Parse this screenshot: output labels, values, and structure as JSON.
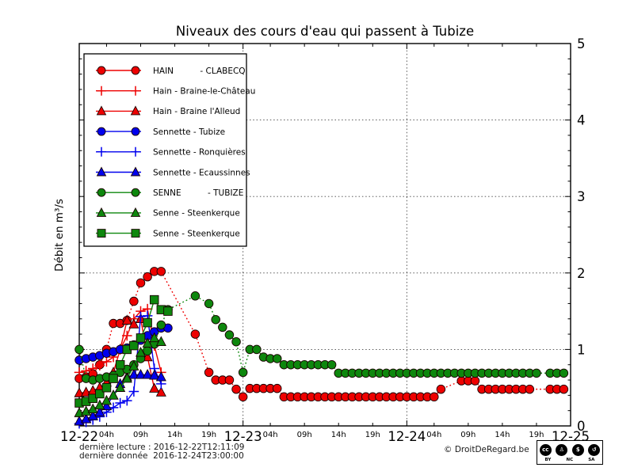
{
  "footer": {
    "last_reading": "dernière lecture : 2016-12-22T12:11:09",
    "last_data": "dernière donnée  2016-12-24T23:00:00",
    "copyright": "© DroitDeRegard.be"
  },
  "cc_badge": {
    "circle_glyphs": [
      "cc",
      "♙",
      "$",
      "↺"
    ],
    "labels": [
      "BY",
      "NC",
      "SA"
    ]
  },
  "chart_data": {
    "type": "line",
    "title": "Niveaux des cours d'eau qui passent à Tubize",
    "ylabel": "Débit en m³/s",
    "ylim": [
      0,
      5
    ],
    "yticks": [
      0,
      1,
      2,
      3,
      4,
      5
    ],
    "y_minor_step": 0.2,
    "xlim_hours": [
      0,
      72
    ],
    "x_day_ticks": [
      {
        "label": "12-22",
        "hour": 0
      },
      {
        "label": "12-23",
        "hour": 24
      },
      {
        "label": "12-24",
        "hour": 48
      },
      {
        "label": "12-25",
        "hour": 72
      }
    ],
    "x_hour_label_offsets": [
      4,
      9,
      14,
      19
    ],
    "hour_label_suffix": "h",
    "grid": {
      "horizontal_at": [
        1,
        2,
        3,
        4
      ],
      "vertical_at_hours": [
        24,
        48
      ],
      "style": "dotted"
    },
    "legend_position": "upper-left",
    "series": [
      {
        "name": "HAIN          - CLABECQ",
        "color": "#ee0000",
        "marker": "circle",
        "line": "dotted",
        "points": [
          [
            0,
            0.62
          ],
          [
            1,
            0.64
          ],
          [
            2,
            0.68
          ],
          [
            3,
            0.8
          ],
          [
            4,
            1.0
          ],
          [
            5,
            1.34
          ],
          [
            6,
            1.34
          ],
          [
            7,
            1.38
          ],
          [
            8,
            1.63
          ],
          [
            9,
            1.87
          ],
          [
            10,
            1.95
          ],
          [
            11,
            2.02
          ],
          [
            12,
            2.02
          ],
          [
            17,
            1.2
          ],
          [
            19,
            0.7
          ],
          [
            20,
            0.6
          ],
          [
            21,
            0.6
          ],
          [
            22,
            0.6
          ],
          [
            23,
            0.48
          ],
          [
            24,
            0.38
          ],
          [
            25,
            0.49
          ],
          [
            26,
            0.49
          ],
          [
            27,
            0.49
          ],
          [
            28,
            0.49
          ],
          [
            29,
            0.49
          ],
          [
            30,
            0.38
          ],
          [
            31,
            0.38
          ],
          [
            32,
            0.38
          ],
          [
            33,
            0.38
          ],
          [
            34,
            0.38
          ],
          [
            35,
            0.38
          ],
          [
            36,
            0.38
          ],
          [
            37,
            0.38
          ],
          [
            38,
            0.38
          ],
          [
            39,
            0.38
          ],
          [
            40,
            0.38
          ],
          [
            41,
            0.38
          ],
          [
            42,
            0.38
          ],
          [
            43,
            0.38
          ],
          [
            44,
            0.38
          ],
          [
            45,
            0.38
          ],
          [
            46,
            0.38
          ],
          [
            47,
            0.38
          ],
          [
            48,
            0.38
          ],
          [
            49,
            0.38
          ],
          [
            50,
            0.38
          ],
          [
            51,
            0.38
          ],
          [
            52,
            0.38
          ],
          [
            53,
            0.48
          ],
          [
            56,
            0.59
          ],
          [
            57,
            0.59
          ],
          [
            58,
            0.59
          ],
          [
            59,
            0.48
          ],
          [
            60,
            0.48
          ],
          [
            61,
            0.48
          ],
          [
            62,
            0.48
          ],
          [
            63,
            0.48
          ],
          [
            64,
            0.48
          ],
          [
            65,
            0.48
          ],
          [
            66,
            0.48
          ],
          [
            69,
            0.48
          ],
          [
            70,
            0.48
          ],
          [
            71,
            0.48
          ]
        ]
      },
      {
        "name": "Hain - Braine-le-Château",
        "color": "#ee0000",
        "marker": "plus",
        "line": "solid",
        "points": [
          [
            0,
            0.7
          ],
          [
            1,
            0.72
          ],
          [
            2,
            0.75
          ],
          [
            3,
            0.79
          ],
          [
            4,
            0.84
          ],
          [
            5,
            0.9
          ],
          [
            6,
            1.0
          ],
          [
            7,
            1.18
          ],
          [
            8,
            1.4
          ],
          [
            9,
            1.5
          ],
          [
            10,
            1.53
          ],
          [
            11,
            1.05
          ],
          [
            12,
            0.7
          ]
        ]
      },
      {
        "name": "Hain - Braine l'Alleud",
        "color": "#ee0000",
        "marker": "triangle",
        "line": "solid",
        "points": [
          [
            0,
            0.43
          ],
          [
            1,
            0.44
          ],
          [
            2,
            0.46
          ],
          [
            3,
            0.5
          ],
          [
            4,
            0.57
          ],
          [
            5,
            0.7
          ],
          [
            6,
            1.0
          ],
          [
            7,
            1.38
          ],
          [
            8,
            1.33
          ],
          [
            9,
            1.4
          ],
          [
            10,
            0.9
          ],
          [
            11,
            0.49
          ],
          [
            12,
            0.44
          ]
        ]
      },
      {
        "name": "Sennette - Tubize",
        "color": "#0000ee",
        "marker": "circle",
        "line": "solid",
        "points": [
          [
            0,
            0.86
          ],
          [
            1,
            0.88
          ],
          [
            2,
            0.9
          ],
          [
            3,
            0.92
          ],
          [
            4,
            0.95
          ],
          [
            5,
            0.97
          ],
          [
            6,
            1.0
          ],
          [
            7,
            1.02
          ],
          [
            8,
            1.06
          ],
          [
            9,
            1.12
          ],
          [
            10,
            1.18
          ],
          [
            11,
            1.23
          ],
          [
            12,
            1.28
          ],
          [
            13,
            1.28
          ]
        ]
      },
      {
        "name": "Sennette - Ronquières",
        "color": "#0000ee",
        "marker": "plus",
        "line": "solid",
        "points": [
          [
            0,
            0.03
          ],
          [
            1,
            0.05
          ],
          [
            2,
            0.08
          ],
          [
            3,
            0.12
          ],
          [
            4,
            0.18
          ],
          [
            5,
            0.24
          ],
          [
            6,
            0.3
          ],
          [
            7,
            0.33
          ],
          [
            8,
            0.45
          ],
          [
            9,
            1.43
          ],
          [
            10,
            1.44
          ],
          [
            11,
            0.75
          ],
          [
            12,
            0.55
          ]
        ]
      },
      {
        "name": "Sennette - Ecaussinnes",
        "color": "#0000ee",
        "marker": "triangle",
        "line": "solid",
        "points": [
          [
            0,
            0.06
          ],
          [
            1,
            0.09
          ],
          [
            2,
            0.13
          ],
          [
            3,
            0.18
          ],
          [
            4,
            0.26
          ],
          [
            5,
            0.4
          ],
          [
            6,
            0.55
          ],
          [
            7,
            0.64
          ],
          [
            8,
            0.67
          ],
          [
            9,
            0.67
          ],
          [
            10,
            0.67
          ],
          [
            11,
            0.66
          ],
          [
            12,
            0.64
          ]
        ]
      },
      {
        "name": "SENNE          - TUBIZE",
        "color": "#0d870d",
        "marker": "circle",
        "line": "dotted",
        "points": [
          [
            0,
            1.0
          ],
          [
            1,
            0.62
          ],
          [
            2,
            0.6
          ],
          [
            3,
            0.62
          ],
          [
            4,
            0.64
          ],
          [
            5,
            0.66
          ],
          [
            6,
            0.7
          ],
          [
            7,
            0.74
          ],
          [
            8,
            0.8
          ],
          [
            9,
            0.88
          ],
          [
            10,
            0.98
          ],
          [
            11,
            1.07
          ],
          [
            12,
            1.32
          ],
          [
            13,
            1.52
          ],
          [
            17,
            1.7
          ],
          [
            19,
            1.6
          ],
          [
            20,
            1.39
          ],
          [
            21,
            1.29
          ],
          [
            22,
            1.19
          ],
          [
            23,
            1.1
          ],
          [
            24,
            0.7
          ],
          [
            25,
            1.0
          ],
          [
            26,
            1.0
          ],
          [
            27,
            0.9
          ],
          [
            28,
            0.88
          ],
          [
            29,
            0.88
          ],
          [
            30,
            0.8
          ],
          [
            31,
            0.8
          ],
          [
            32,
            0.8
          ],
          [
            33,
            0.8
          ],
          [
            34,
            0.8
          ],
          [
            35,
            0.8
          ],
          [
            36,
            0.8
          ],
          [
            37,
            0.8
          ],
          [
            38,
            0.69
          ],
          [
            39,
            0.69
          ],
          [
            40,
            0.69
          ],
          [
            41,
            0.69
          ],
          [
            42,
            0.69
          ],
          [
            43,
            0.69
          ],
          [
            44,
            0.69
          ],
          [
            45,
            0.69
          ],
          [
            46,
            0.69
          ],
          [
            47,
            0.69
          ],
          [
            48,
            0.69
          ],
          [
            49,
            0.69
          ],
          [
            50,
            0.69
          ],
          [
            51,
            0.69
          ],
          [
            52,
            0.69
          ],
          [
            53,
            0.69
          ],
          [
            54,
            0.69
          ],
          [
            55,
            0.69
          ],
          [
            56,
            0.69
          ],
          [
            57,
            0.69
          ],
          [
            58,
            0.69
          ],
          [
            59,
            0.69
          ],
          [
            60,
            0.69
          ],
          [
            61,
            0.69
          ],
          [
            62,
            0.69
          ],
          [
            63,
            0.69
          ],
          [
            64,
            0.69
          ],
          [
            65,
            0.69
          ],
          [
            66,
            0.69
          ],
          [
            67,
            0.69
          ],
          [
            69,
            0.69
          ],
          [
            70,
            0.69
          ],
          [
            71,
            0.69
          ]
        ]
      },
      {
        "name": "Senne - Steenkerque",
        "color": "#0d870d",
        "marker": "triangle",
        "line": "solid",
        "points": [
          [
            0,
            0.17
          ],
          [
            1,
            0.19
          ],
          [
            2,
            0.22
          ],
          [
            3,
            0.27
          ],
          [
            4,
            0.33
          ],
          [
            5,
            0.4
          ],
          [
            6,
            0.5
          ],
          [
            7,
            0.62
          ],
          [
            8,
            0.78
          ],
          [
            9,
            0.96
          ],
          [
            10,
            1.08
          ],
          [
            11,
            1.15
          ],
          [
            12,
            1.1
          ]
        ]
      },
      {
        "name": "Senne - Steenkerque",
        "color": "#0d870d",
        "marker": "square",
        "line": "solid",
        "points": [
          [
            0,
            0.3
          ],
          [
            1,
            0.32
          ],
          [
            2,
            0.36
          ],
          [
            3,
            0.42
          ],
          [
            4,
            0.5
          ],
          [
            5,
            0.62
          ],
          [
            6,
            0.8
          ],
          [
            7,
            1.0
          ],
          [
            8,
            1.05
          ],
          [
            9,
            1.15
          ],
          [
            10,
            1.35
          ],
          [
            11,
            1.65
          ],
          [
            12,
            1.52
          ],
          [
            13,
            1.5
          ]
        ]
      }
    ]
  }
}
